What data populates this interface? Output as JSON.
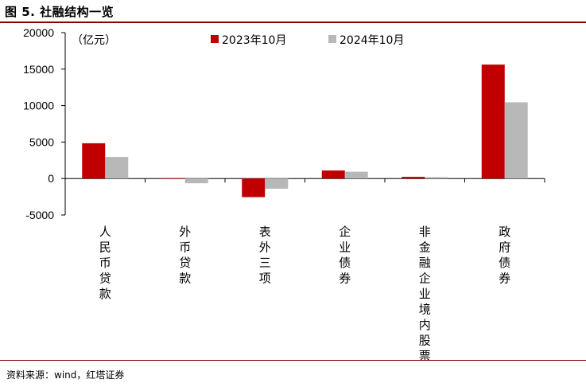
{
  "title": "图 5. 社融结构一览",
  "source": "资料来源：wind，红塔证券",
  "chart_data": {
    "type": "bar",
    "unit_label": "（亿元）",
    "categories": [
      "人民币贷款",
      "外币贷款",
      "表外三项",
      "企业债券",
      "非金融企业境内股票",
      "政府债券"
    ],
    "series": [
      {
        "name": "2023年10月",
        "color": "#c00000",
        "values": [
          4837,
          40,
          -2550,
          1100,
          230,
          15620
        ]
      },
      {
        "name": "2024年10月",
        "color": "#b8b8b8",
        "values": [
          2960,
          -650,
          -1400,
          940,
          190,
          10450
        ]
      }
    ],
    "ylim": [
      -5000,
      20000
    ],
    "yticks": [
      -5000,
      0,
      5000,
      10000,
      15000,
      20000
    ],
    "legend_position": "top-center",
    "grid": false
  }
}
